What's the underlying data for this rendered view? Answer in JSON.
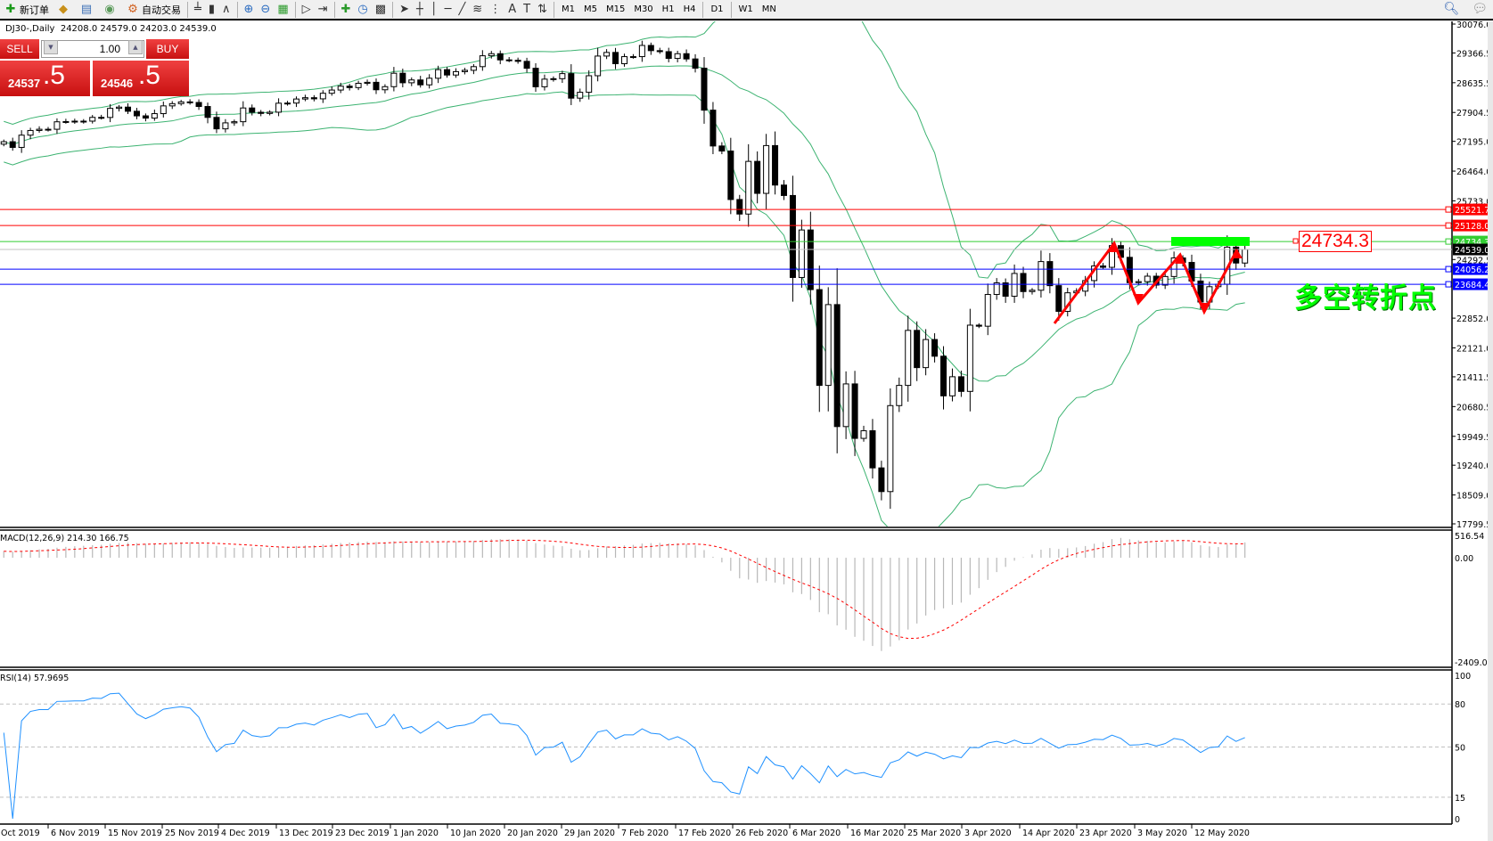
{
  "toolbar": {
    "items": [
      {
        "icon": "new-order-icon",
        "label": "新订单"
      },
      {
        "icon": "market-watch-icon",
        "label": ""
      },
      {
        "icon": "navigator-icon",
        "label": ""
      },
      {
        "icon": "signal-icon",
        "label": ""
      },
      {
        "icon": "auto-trading-icon",
        "label": "自动交易"
      }
    ],
    "chart_tools": [
      "bar-chart-icon",
      "candlestick-icon",
      "line-chart-icon",
      "zoom-in-icon",
      "zoom-out-icon",
      "tile-windows-icon",
      "chart-shift-icon",
      "autoscroll-icon",
      "indicators-icon",
      "periods-icon",
      "templates-icon",
      "cursor-icon",
      "crosshair-icon",
      "vertical-line-icon",
      "horizontal-line-icon",
      "trendline-icon",
      "fibonacci-icon",
      "fibonacci-fan-icon",
      "text-icon",
      "text-label-icon",
      "arrows-icon"
    ],
    "timeframes": [
      "M1",
      "M5",
      "M15",
      "M30",
      "H1",
      "H4",
      "D1",
      "W1",
      "MN"
    ]
  },
  "header": {
    "symbol": "DJ30-,Daily",
    "ohlc": "24208.0 24579.0 24203.0 24539.0"
  },
  "trade_panel": {
    "sell_label": "SELL",
    "buy_label": "BUY",
    "lot": "1.00",
    "bid_main": "24537",
    "bid_frac": ".5",
    "ask_main": "24546",
    "ask_frac": ".5"
  },
  "price_axis": {
    "range": [
      17799.5,
      30076.0
    ],
    "ticks": [
      "30076.0",
      "29366.5",
      "28635.5",
      "27904.5",
      "27195.0",
      "26464.0",
      "25733.0",
      "24292.5",
      "22852.0",
      "22121.0",
      "21411.5",
      "20680.5",
      "19949.5",
      "19240.0",
      "18509.0",
      "17799.5"
    ]
  },
  "levels": [
    {
      "value": "25521.7",
      "color": "#ff0000"
    },
    {
      "value": "25128.0",
      "color": "#ff0000"
    },
    {
      "value": "24734.3",
      "color": "#32cd32"
    },
    {
      "value": "24539.0",
      "color": "#000000",
      "line": "#c0c0c0"
    },
    {
      "value": "24056.2",
      "color": "#0000ff"
    },
    {
      "value": "23684.4",
      "color": "#0000ff"
    }
  ],
  "annotations": {
    "level_label": "24734.3",
    "text": "多空转折点",
    "text_color": "#00ff00",
    "zigzag_color": "#ff0000"
  },
  "macd": {
    "label": "MACD(12,26,9) 214.30 166.75",
    "fast": 12,
    "slow": 26,
    "signal": 9,
    "ticks": [
      "516.54",
      "0.00",
      "-2409.06"
    ],
    "range": [
      -2409.06,
      516.54
    ]
  },
  "rsi": {
    "label": "RSI(14) 57.9695",
    "period": 14,
    "ticks": [
      "100",
      "80",
      "50",
      "15",
      "0"
    ],
    "color": "#1e90ff"
  },
  "bands": {
    "period": 20,
    "deviation": 2,
    "color": "#3cb371"
  },
  "date_axis": [
    "Oct 2019",
    "6 Nov 2019",
    "15 Nov 2019",
    "25 Nov 2019",
    "4 Dec 2019",
    "13 Dec 2019",
    "23 Dec 2019",
    "1 Jan 2020",
    "10 Jan 2020",
    "20 Jan 2020",
    "29 Jan 2020",
    "7 Feb 2020",
    "17 Feb 2020",
    "26 Feb 2020",
    "6 Mar 2020",
    "16 Mar 2020",
    "25 Mar 2020",
    "3 Apr 2020",
    "14 Apr 2020",
    "23 Apr 2020",
    "3 May 2020",
    "12 May 2020"
  ],
  "chart_data": {
    "type": "candlestick",
    "symbol": "DJ30-",
    "timeframe": "Daily",
    "close": [
      27186,
      27046,
      27347,
      27462,
      27492,
      27492,
      27675,
      27681,
      27691,
      27691,
      27784,
      27782,
      28005,
      28036,
      27934,
      27821,
      27766,
      27876,
      28066,
      28121,
      28164,
      28150,
      28051,
      27783,
      27502,
      27649,
      27677,
      28015,
      27909,
      27881,
      27911,
      28132,
      28135,
      28235,
      28267,
      28239,
      28376,
      28455,
      28551,
      28515,
      28621,
      28645,
      28462,
      28538,
      28868,
      28634,
      28703,
      28583,
      28745,
      28956,
      28824,
      28907,
      28940,
      29030,
      29297,
      29348,
      29196,
      29186,
      29160,
      28990,
      28535,
      28723,
      28734,
      28859,
      28256,
      28400,
      28807,
      29290,
      29379,
      29102,
      29276,
      29276,
      29551,
      29423,
      29398,
      29232,
      29348,
      29219,
      28992,
      27961,
      27081,
      26957,
      25766,
      25409,
      26703,
      25917,
      27091,
      26121,
      25865,
      23851,
      25018,
      23553,
      21200,
      23185,
      20189,
      21237,
      19899,
      20087,
      19174,
      18592,
      20704,
      21200,
      22552,
      21637,
      22327,
      21917,
      20943,
      21413,
      21053,
      22680,
      22654,
      23434,
      23719,
      23390,
      23950,
      23505,
      23538,
      24242,
      23650,
      23019,
      23475,
      23515,
      23775,
      24134,
      24101,
      24634,
      24346,
      23724,
      23749,
      23883,
      23664,
      23875,
      24331,
      24221,
      23764,
      23248,
      23625,
      23685,
      24597,
      24206,
      24539
    ]
  }
}
